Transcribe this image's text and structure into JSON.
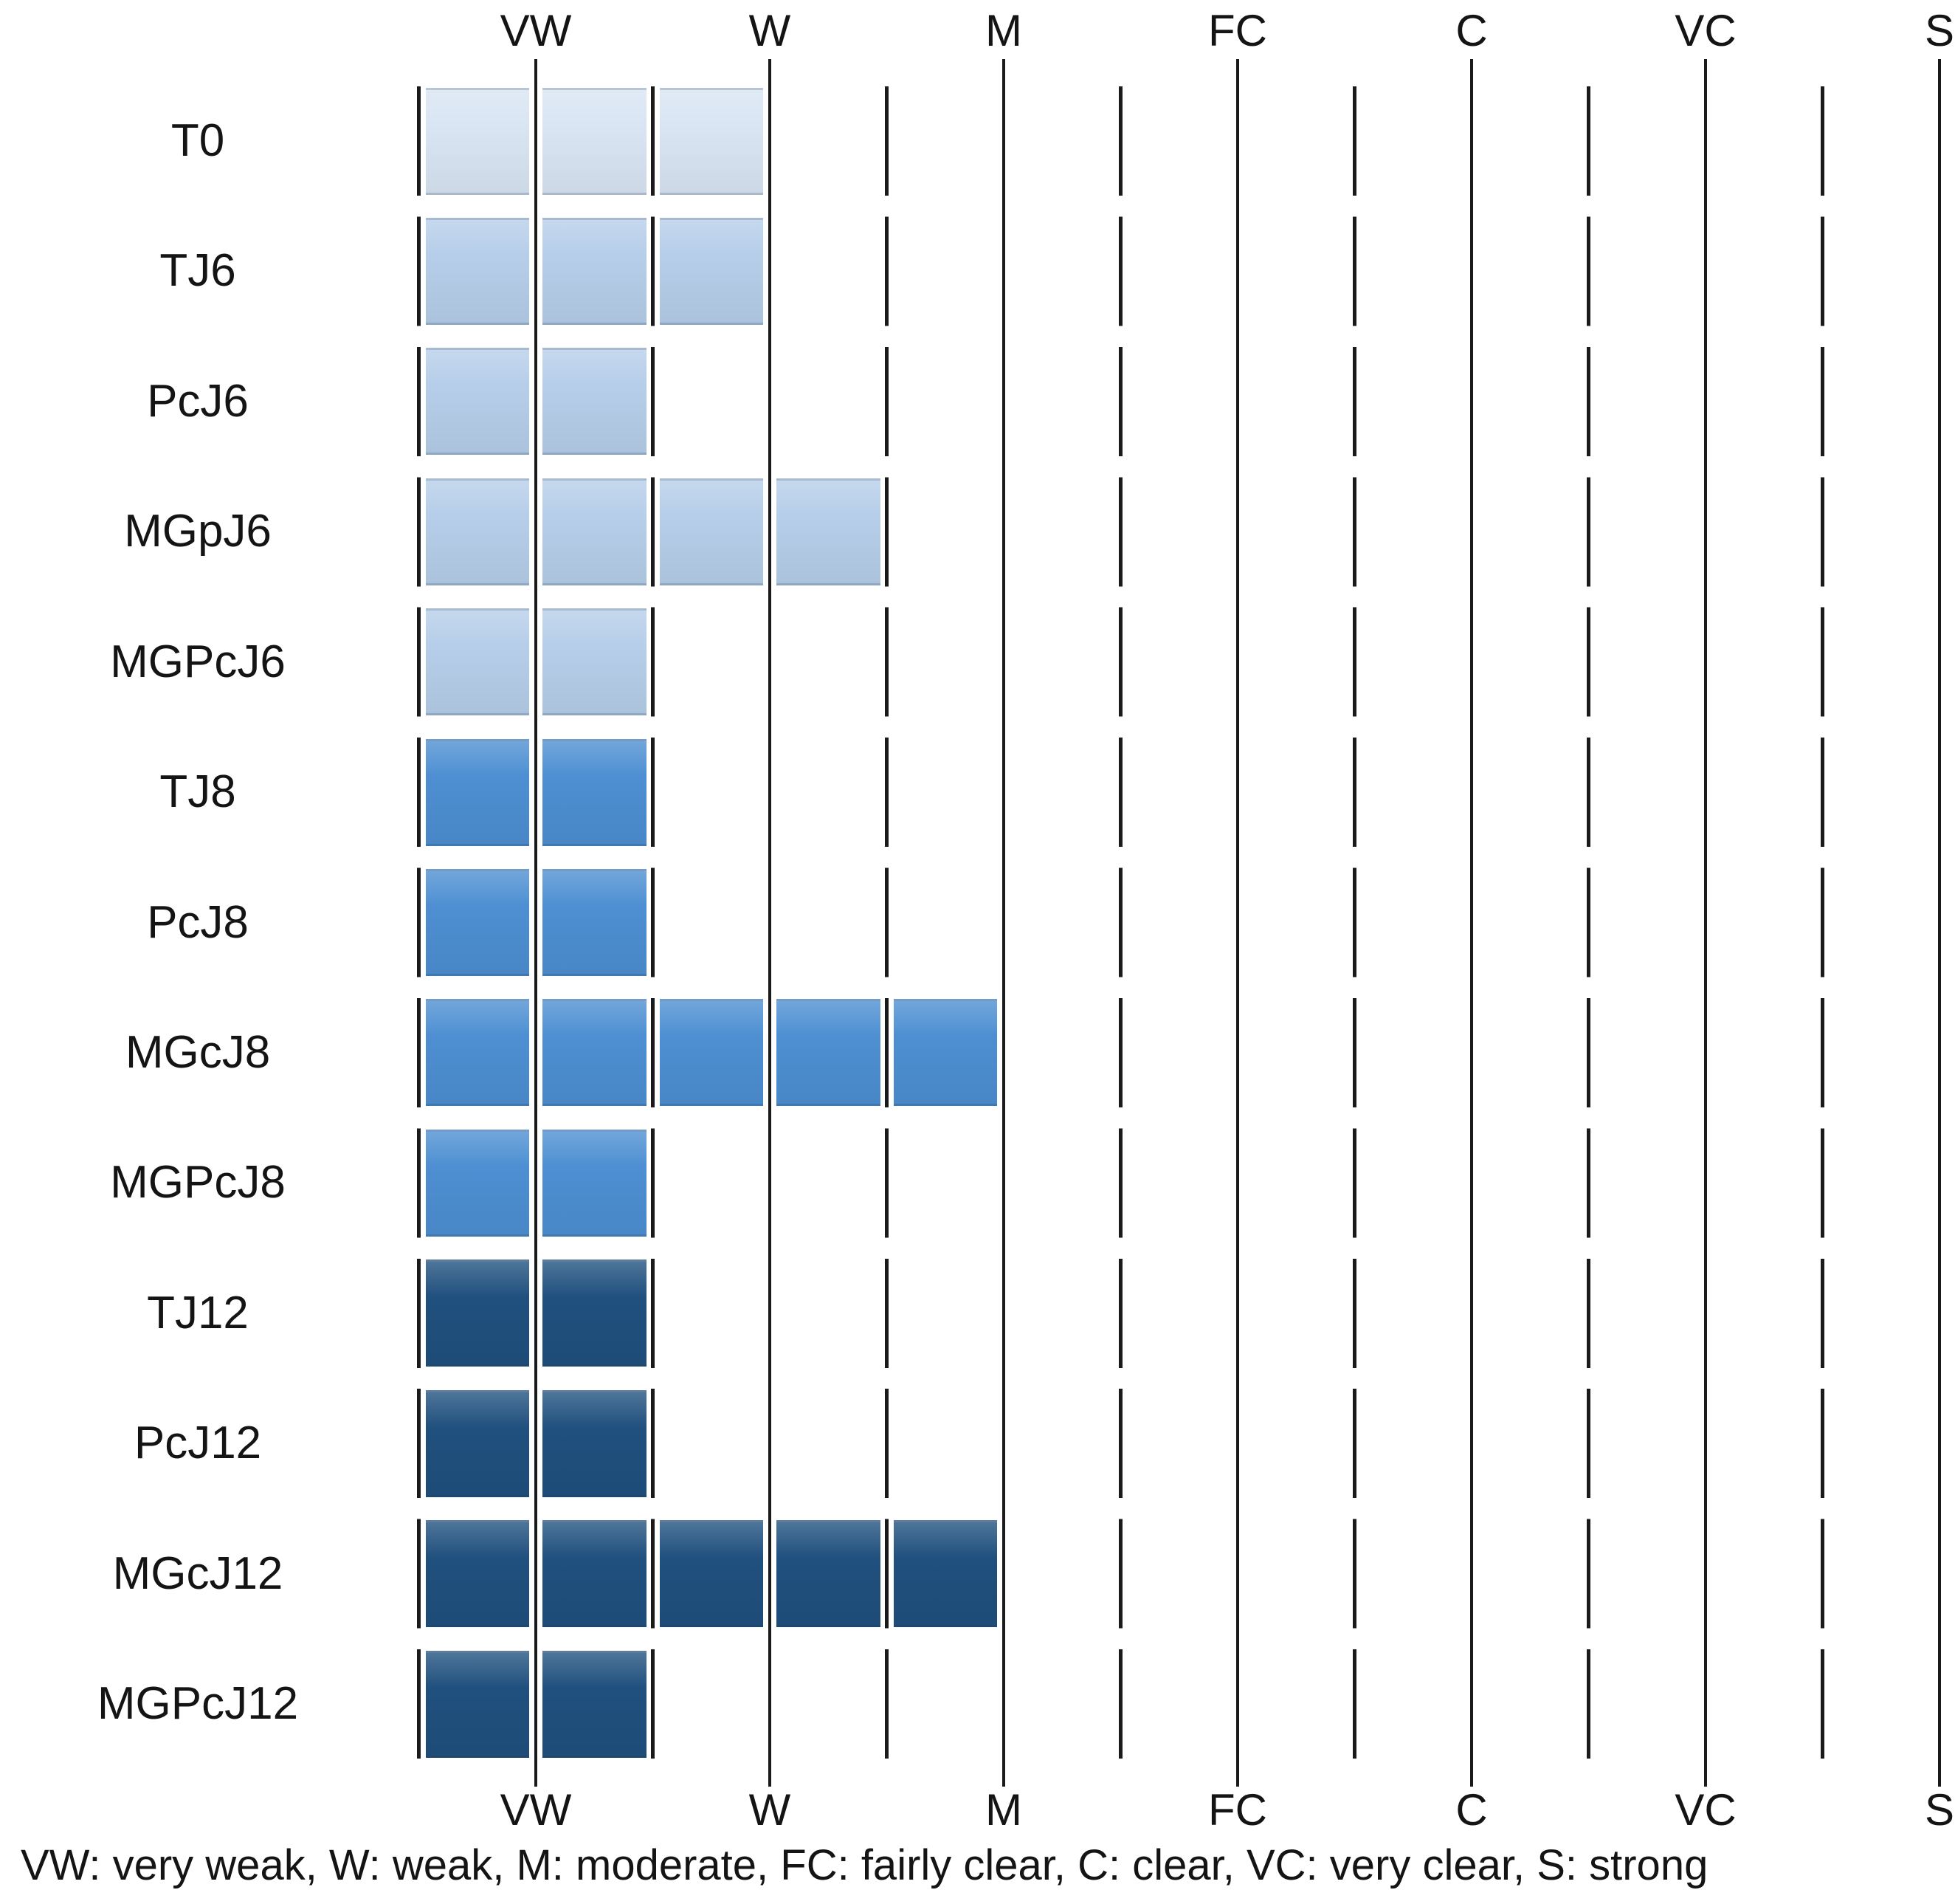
{
  "chart_data": {
    "type": "bar",
    "orientation": "horizontal",
    "title": "",
    "xlabel": "",
    "ylabel": "",
    "scale_labels": [
      "VW",
      "W",
      "M",
      "FC",
      "C",
      "VC",
      "S"
    ],
    "scale_meaning": {
      "VW": "very weak",
      "W": "weak",
      "M": "moderate",
      "FC": "fairly clear",
      "C": "clear",
      "VC": "very clear",
      "S": "strong"
    },
    "scale_values": {
      "VW": 1,
      "W": 2,
      "M": 3,
      "FC": 4,
      "C": 5,
      "VC": 6,
      "S": 7
    },
    "axis_ticks_top_and_bottom": true,
    "xlim": [
      0.5,
      7.5
    ],
    "bar_start": 0.5,
    "grid": "solid lines at each scale label, dashed lines at half steps",
    "legend_position": "none",
    "categories": [
      "T0",
      "TJ6",
      "PcJ6",
      "MGpJ6",
      "MGPcJ6",
      "TJ8",
      "PcJ8",
      "MGcJ8",
      "MGPcJ8",
      "TJ12",
      "PcJ12",
      "MGcJ12",
      "MGPcJ12"
    ],
    "values": [
      2.0,
      2.0,
      1.5,
      2.5,
      1.5,
      1.5,
      1.5,
      3.0,
      1.5,
      1.5,
      1.5,
      3.0,
      1.5
    ]
  },
  "rows": [
    {
      "label": "T0",
      "value": 2.0,
      "group": "t0"
    },
    {
      "label": "TJ6",
      "value": 2.0,
      "group": "j6"
    },
    {
      "label": "PcJ6",
      "value": 1.5,
      "group": "j6"
    },
    {
      "label": "MGpJ6",
      "value": 2.5,
      "group": "j6"
    },
    {
      "label": "MGPcJ6",
      "value": 1.5,
      "group": "j6"
    },
    {
      "label": "TJ8",
      "value": 1.5,
      "group": "j8"
    },
    {
      "label": "PcJ8",
      "value": 1.5,
      "group": "j8"
    },
    {
      "label": "MGcJ8",
      "value": 3.0,
      "group": "j8"
    },
    {
      "label": "MGPcJ8",
      "value": 1.5,
      "group": "j8"
    },
    {
      "label": "TJ12",
      "value": 1.5,
      "group": "j12"
    },
    {
      "label": "PcJ12",
      "value": 1.5,
      "group": "j12"
    },
    {
      "label": "MGcJ12",
      "value": 3.0,
      "group": "j12"
    },
    {
      "label": "MGPcJ12",
      "value": 1.5,
      "group": "j12"
    }
  ],
  "colors": {
    "t0": "#d9e5f3",
    "j6": "#b6cee9",
    "j8": "#4d8fd2",
    "j12": "#20507e",
    "line": "#1a1a1a",
    "text": "#141414"
  },
  "caption": "VW: very weak, W: weak, M: moderate, FC: fairly clear, C: clear, VC: very clear, S: strong"
}
